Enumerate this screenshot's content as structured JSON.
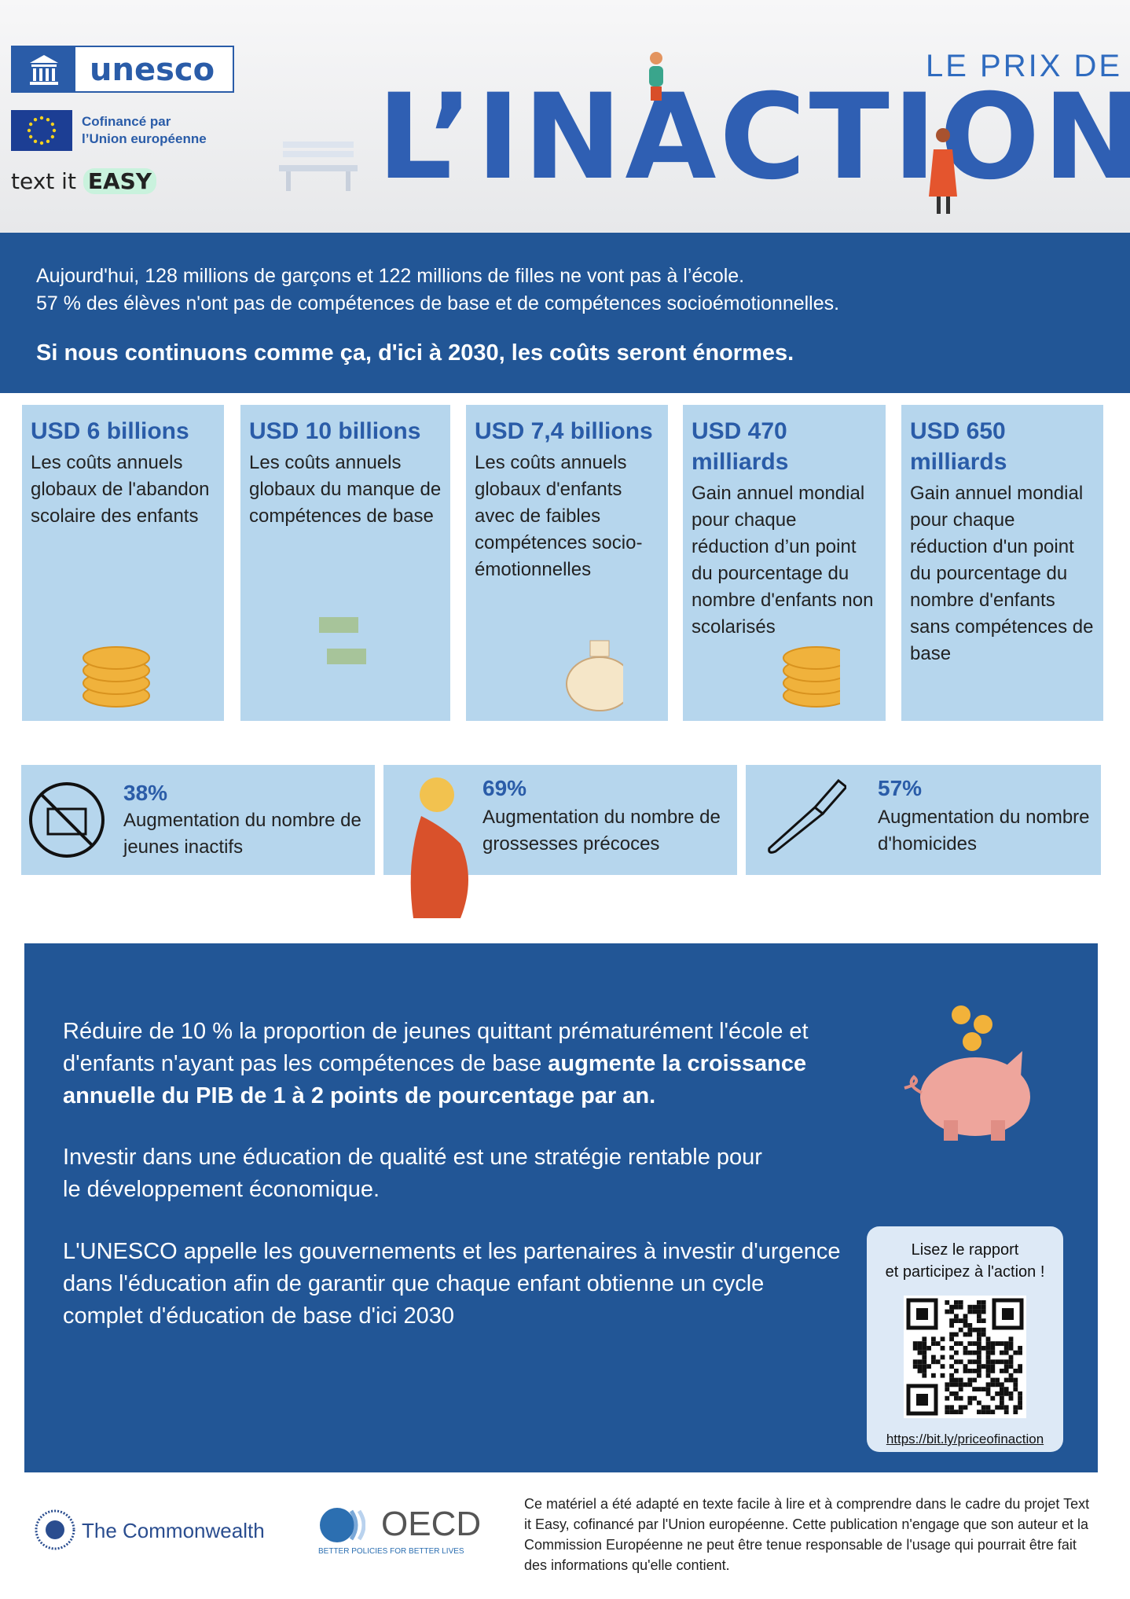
{
  "header": {
    "unesco": "unesco",
    "eu_line1": "Cofinancé par",
    "eu_line2": "l’Union européenne",
    "text_it": "text it",
    "easy": "EASY",
    "title_small": "LE PRIX DE",
    "title_big": "L’INACTION"
  },
  "intro": {
    "line1": "Aujourd'hui, 128 millions de garçons et 122 millions de filles ne vont pas à l’école.",
    "line2": "57 % des élèves n'ont pas de compétences de base et de compétences socioémotionnelles.",
    "highlight": "Si nous continuons comme ça, d'ici à 2030, les coûts seront énormes."
  },
  "cards": [
    {
      "amount": "USD 6 billions",
      "text": "Les coûts annuels globaux de l'abandon scolaire des enfants"
    },
    {
      "amount": "USD 10 billions",
      "text": "Les coûts annuels globaux du manque de compétences de base"
    },
    {
      "amount": "USD 7,4 billions",
      "text": "Les coûts annuels globaux d'enfants avec de faibles compétences socio-émotionnelles"
    },
    {
      "amount": "USD 470 milliards",
      "text": "Gain annuel mondial pour chaque réduction d’un point du pourcentage du nombre d'enfants non scolarisés"
    },
    {
      "amount": "USD 650 milliards",
      "text": "Gain annuel mondial pour chaque réduction d'un point du pourcentage du nombre d'enfants sans compétences de base"
    }
  ],
  "stats": [
    {
      "value": "38%",
      "text": "Augmentation du nombre de jeunes inactifs"
    },
    {
      "value": "69%",
      "text": "Augmentation du nombre de grossesses précoces"
    },
    {
      "value": "57%",
      "text": "Augmentation du nombre d'homicides"
    }
  ],
  "box": {
    "p1_normal": "Réduire de 10 % la proportion de jeunes quittant prématurément l'école et d'enfants n'ayant pas les compétences de base",
    "p1_bold": "augmente la croissance annuelle du PIB de 1 à 2 points de pourcentage par an.",
    "p2": "Investir dans une éducation de qualité est une stratégie rentable pour le développement économique.",
    "p3": "L'UNESCO appelle les gouvernements et les partenaires à investir d'urgence dans l'éducation afin de garantir que chaque enfant obtienne un cycle complet d'éducation de base d'ici 2030",
    "qr_line1": "Lisez le rapport",
    "qr_line2": "et participez à l'action !",
    "link": "https://bit.ly/priceofinaction"
  },
  "footer": {
    "commonwealth": "The Commonwealth",
    "oecd": "OECD",
    "oecd_tagline": "BETTER POLICIES FOR BETTER LIVES",
    "disclaimer": "Ce matériel a été adapté en texte facile à lire et à comprendre dans le cadre du projet Text it Easy, cofinancé par l'Union européenne. Cette publication n'engage que son auteur et la Commission Européenne ne peut être tenue responsable de l'usage qui pourrait être fait des informations qu'elle contient."
  }
}
